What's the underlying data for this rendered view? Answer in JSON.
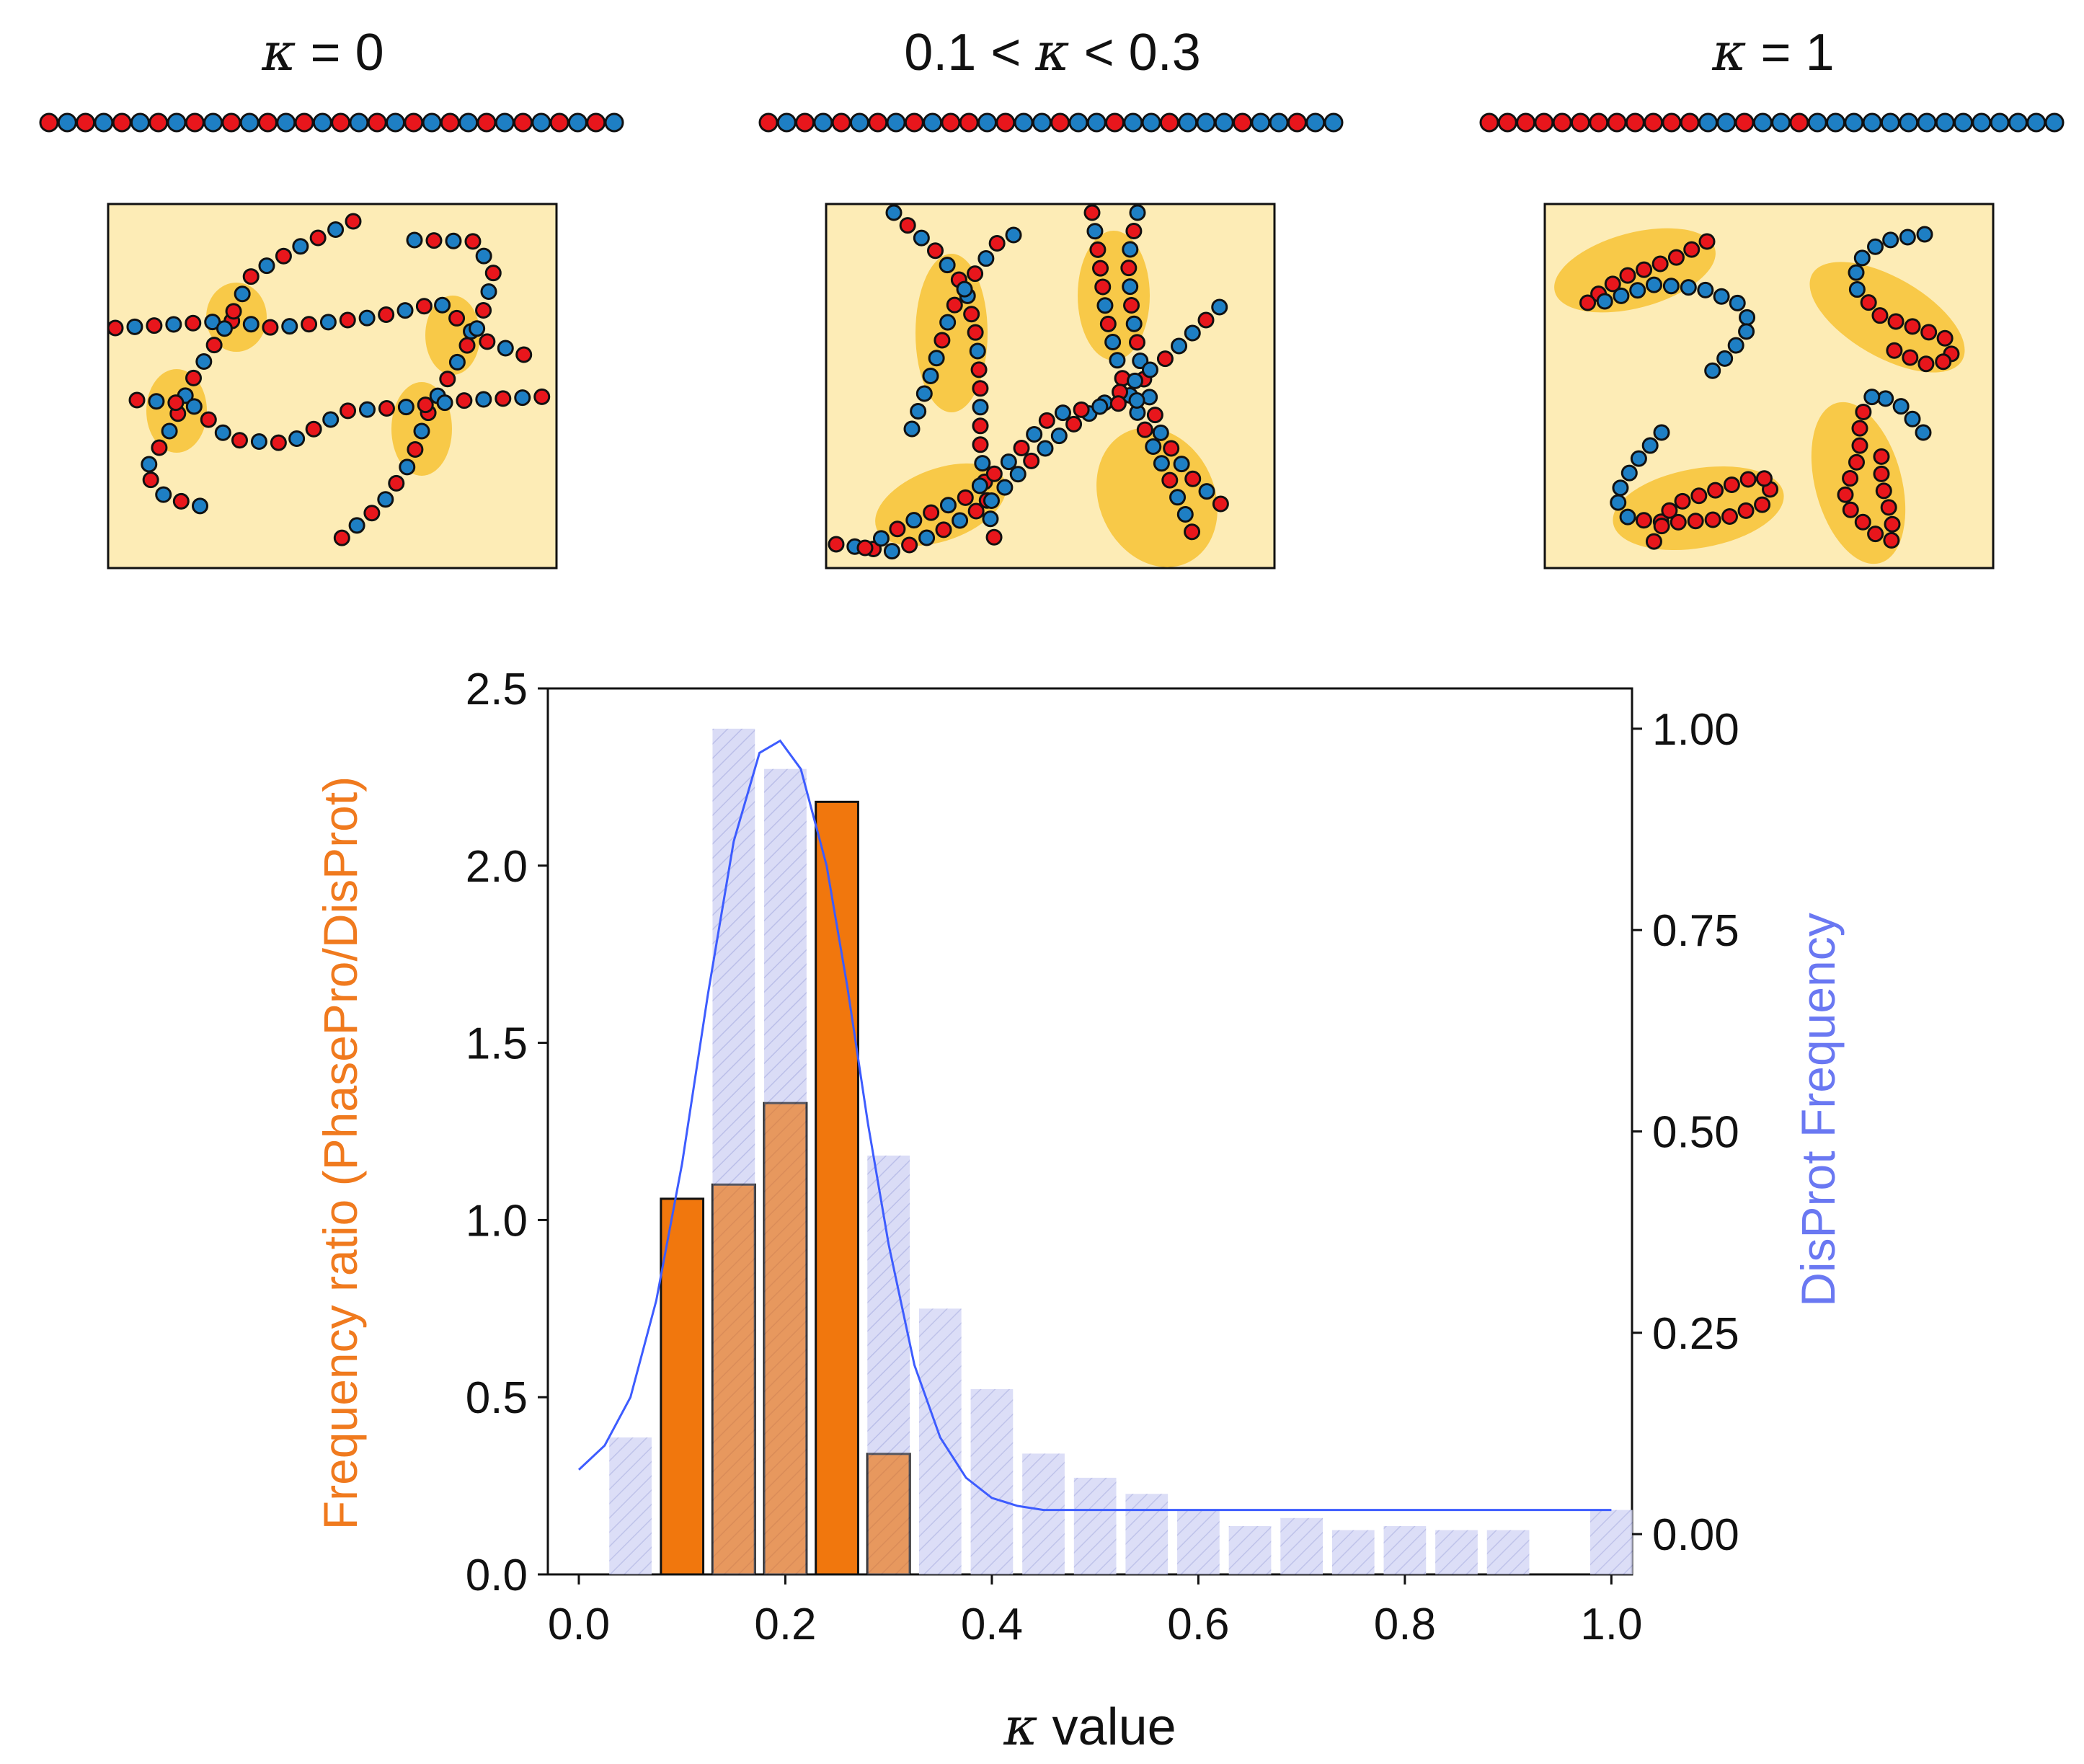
{
  "colors": {
    "red_bead": "#e8161c",
    "blue_bead": "#1e7fc4",
    "panel_bg": "#fdecb6",
    "cluster": "#f6c12d",
    "orange_bar": "#f07000",
    "disprot_bar": "#d6d8f5",
    "fit_line": "#3d5cff",
    "left_axis_label": "#f07a1e",
    "right_axis_label": "#6a78f2"
  },
  "panels": [
    {
      "title_prefix": "",
      "kappa_symbol": "κ",
      "title_suffix": " = 0",
      "pattern": "alternating"
    },
    {
      "title_prefix": "0.1 < ",
      "kappa_symbol": "κ",
      "title_suffix": " < 0.3",
      "pattern": "partial"
    },
    {
      "title_prefix": "",
      "kappa_symbol": "κ",
      "title_suffix": " = 1",
      "pattern": "blocky"
    }
  ],
  "chart_data": {
    "type": "bar",
    "xlabel_symbol": "κ",
    "xlabel_text": " value",
    "ylabel_left": "Frequency ratio (PhasePro/DisProt)",
    "ylabel_right": "DisProt Frequency",
    "xlim": [
      -0.03,
      1.02
    ],
    "ylim_left": [
      0,
      2.5
    ],
    "ylim_right": [
      -0.05,
      1.05
    ],
    "x_ticks": [
      "0.0",
      "0.2",
      "0.4",
      "0.6",
      "0.8",
      "1.0"
    ],
    "y_left_ticks": [
      "0.0",
      "0.5",
      "1.0",
      "1.5",
      "2.0",
      "2.5"
    ],
    "y_right_ticks": [
      "0.00",
      "0.25",
      "0.50",
      "0.75",
      "1.00"
    ],
    "bin_width": 0.05,
    "series": [
      {
        "name": "DisProt Frequency",
        "axis": "right",
        "centers": [
          0.05,
          0.15,
          0.2,
          0.3,
          0.35,
          0.4,
          0.45,
          0.5,
          0.55,
          0.6,
          0.65,
          0.7,
          0.75,
          0.8,
          0.85,
          0.9,
          1.0
        ],
        "values": [
          0.12,
          1.0,
          0.95,
          0.47,
          0.28,
          0.18,
          0.1,
          0.07,
          0.05,
          0.03,
          0.01,
          0.02,
          0.005,
          0.01,
          0.005,
          0.005,
          0.03
        ]
      },
      {
        "name": "Frequency ratio (PhasePro/DisProt)",
        "axis": "left",
        "centers": [
          0.1,
          0.15,
          0.2,
          0.25,
          0.3
        ],
        "values": [
          1.06,
          1.1,
          1.33,
          2.18,
          0.34
        ]
      },
      {
        "name": "DisProt fit",
        "axis": "right",
        "type": "line",
        "x": [
          0.0,
          0.025,
          0.05,
          0.075,
          0.1,
          0.125,
          0.15,
          0.175,
          0.195,
          0.215,
          0.24,
          0.26,
          0.28,
          0.3,
          0.325,
          0.35,
          0.375,
          0.4,
          0.425,
          0.45,
          0.475,
          0.5,
          0.6,
          0.7,
          0.8,
          0.9,
          1.0
        ],
        "values": [
          0.08,
          0.11,
          0.17,
          0.29,
          0.46,
          0.67,
          0.86,
          0.97,
          0.985,
          0.95,
          0.83,
          0.68,
          0.51,
          0.36,
          0.21,
          0.12,
          0.07,
          0.045,
          0.035,
          0.03,
          0.03,
          0.03,
          0.03,
          0.03,
          0.03,
          0.03,
          0.03
        ]
      }
    ]
  }
}
